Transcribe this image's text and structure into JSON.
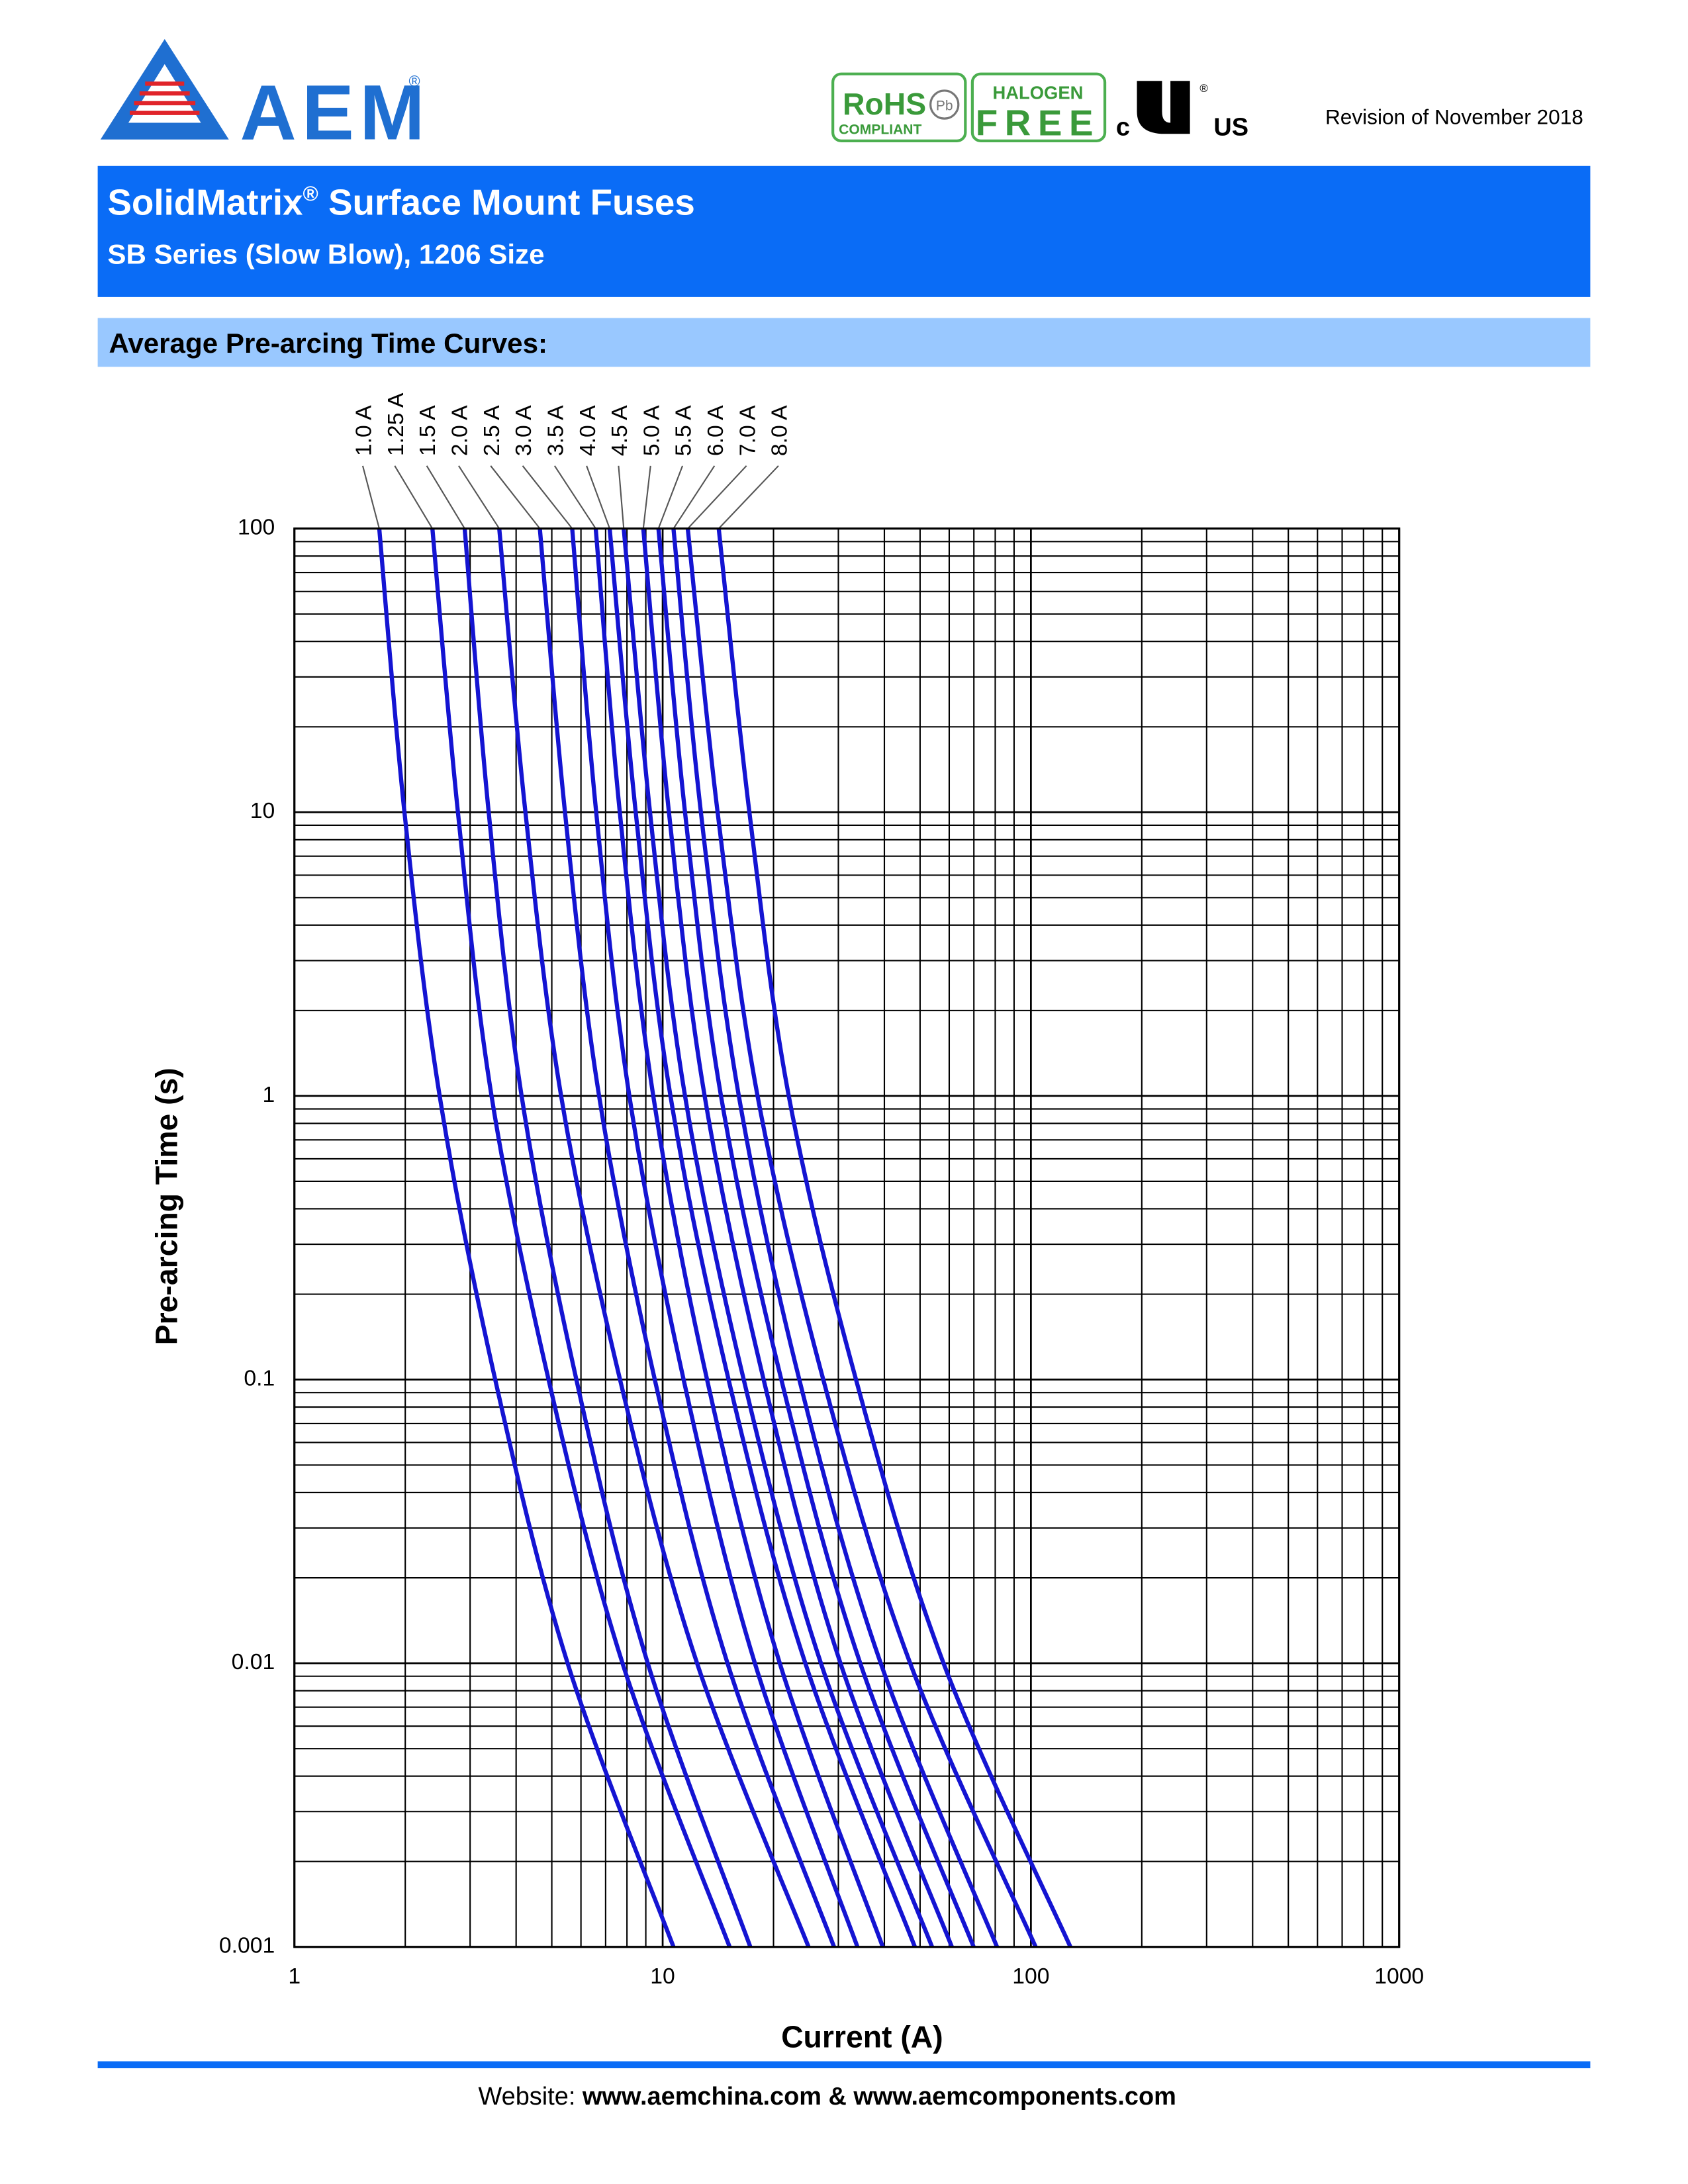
{
  "header": {
    "logo_text": "AEM",
    "logo_mark": "®",
    "rohs": "RoHS",
    "rohs_sub": "COMPLIANT",
    "pb": "Pb",
    "halogen": "HALOGEN",
    "free": "FREE",
    "ul_c": "c",
    "ul_us": "US",
    "ul_mark": "®",
    "revision": "Revision of November 2018"
  },
  "banner": {
    "title": "SolidMatrix",
    "title_mark": "®",
    "title_rest": " Surface Mount Fuses",
    "subtitle": "SB Series (Slow Blow), 1206 Size"
  },
  "section_title": "Average Pre-arcing Time Curves:",
  "chart_data": {
    "type": "line",
    "x_label": "Current (A)",
    "y_label": "Pre-arcing Time (s)",
    "x_scale": "log",
    "y_scale": "log",
    "grid": true,
    "xlim": [
      1,
      1000
    ],
    "ylim": [
      0.001,
      100
    ],
    "xticks": [
      1,
      10,
      100,
      1000
    ],
    "yticks": [
      0.001,
      0.01,
      0.1,
      1,
      10,
      100
    ],
    "series": [
      {
        "name": "1.0 A",
        "color": "#1414d2",
        "x": [
          1.7,
          1.99,
          2.48,
          3.51,
          5.52,
          10.7
        ],
        "values": [
          100,
          10,
          1,
          0.1,
          0.01,
          0.001
        ]
      },
      {
        "name": "1.25 A",
        "color": "#1414d2",
        "x": [
          2.37,
          2.78,
          3.43,
          4.9,
          7.78,
          15.2
        ],
        "values": [
          100,
          10,
          1,
          0.1,
          0.01,
          0.001
        ]
      },
      {
        "name": "1.5 A",
        "color": "#1414d2",
        "x": [
          2.9,
          3.37,
          4.14,
          5.83,
          9.11,
          17.3
        ],
        "values": [
          100,
          10,
          1,
          0.1,
          0.01,
          0.001
        ]
      },
      {
        "name": "2.0 A",
        "color": "#1414d2",
        "x": [
          3.6,
          4.24,
          5.3,
          7.66,
          12.4,
          24.9
        ],
        "values": [
          100,
          10,
          1,
          0.1,
          0.01,
          0.001
        ]
      },
      {
        "name": "2.5 A",
        "color": "#1414d2",
        "x": [
          4.64,
          5.43,
          6.72,
          9.52,
          15.0,
          29.2
        ],
        "values": [
          100,
          10,
          1,
          0.1,
          0.01,
          0.001
        ]
      },
      {
        "name": "3.0 A",
        "color": "#1414d2",
        "x": [
          5.68,
          6.6,
          8.12,
          11.4,
          17.8,
          33.8
        ],
        "values": [
          100,
          10,
          1,
          0.1,
          0.01,
          0.001
        ]
      },
      {
        "name": "3.5 A",
        "color": "#1414d2",
        "x": [
          6.58,
          7.65,
          9.43,
          13.2,
          20.8,
          39.6
        ],
        "values": [
          100,
          10,
          1,
          0.1,
          0.01,
          0.001
        ]
      },
      {
        "name": "4.0 A",
        "color": "#1414d2",
        "x": [
          7.18,
          8.45,
          10.5,
          15.1,
          24.4,
          48.4
        ],
        "values": [
          100,
          10,
          1,
          0.1,
          0.01,
          0.001
        ]
      },
      {
        "name": "4.5 A",
        "color": "#1414d2",
        "x": [
          7.84,
          9.24,
          11.5,
          16.6,
          26.9,
          53.9
        ],
        "values": [
          100,
          10,
          1,
          0.1,
          0.01,
          0.001
        ]
      },
      {
        "name": "5.0 A",
        "color": "#1414d2",
        "x": [
          8.86,
          10.4,
          13.0,
          18.8,
          30.4,
          61.0
        ],
        "values": [
          100,
          10,
          1,
          0.1,
          0.01,
          0.001
        ]
      },
      {
        "name": "5.5 A",
        "color": "#1414d2",
        "x": [
          9.74,
          11.5,
          14.4,
          21.0,
          34.4,
          69.9
        ],
        "values": [
          100,
          10,
          1,
          0.1,
          0.01,
          0.001
        ]
      },
      {
        "name": "6.0 A",
        "color": "#1414d2",
        "x": [
          10.7,
          12.7,
          16.1,
          23.5,
          39.1,
          80.9
        ],
        "values": [
          100,
          10,
          1,
          0.1,
          0.01,
          0.001
        ]
      },
      {
        "name": "7.0 A",
        "color": "#1414d2",
        "x": [
          11.7,
          14.1,
          18.1,
          27.3,
          47.0,
          103
        ],
        "values": [
          100,
          10,
          1,
          0.1,
          0.01,
          0.001
        ]
      },
      {
        "name": "8.0 A",
        "color": "#1414d2",
        "x": [
          14.2,
          17.2,
          22.0,
          33.5,
          57.9,
          128
        ],
        "values": [
          100,
          10,
          1,
          0.1,
          0.01,
          0.001
        ]
      }
    ]
  },
  "footer": {
    "label": "Website:  ",
    "url": "www.aemchina.com & www.aemcomponents.com"
  }
}
